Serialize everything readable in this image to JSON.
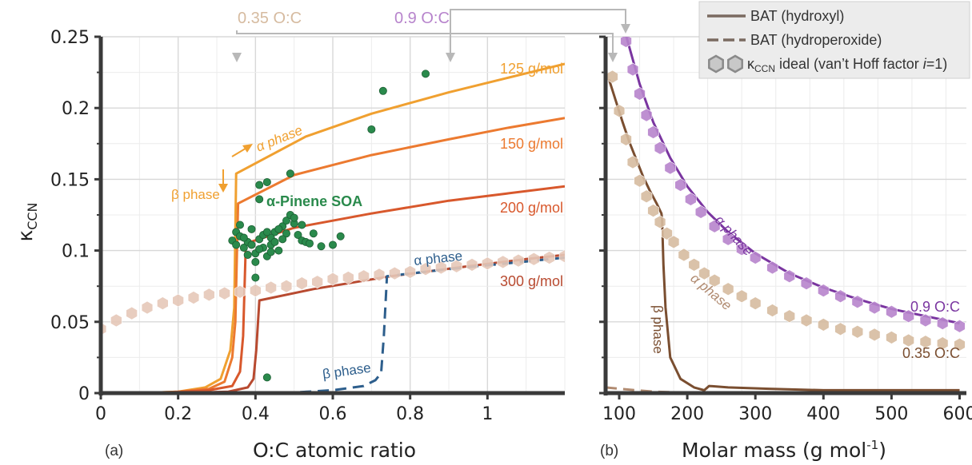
{
  "chart_data": [
    {
      "panel": "(a)",
      "type": "line",
      "xlabel": "O:C atomic ratio",
      "ylabel": "κ",
      "ylabel_sub": "CCN",
      "xlim": [
        0,
        1.2
      ],
      "ylim": [
        0,
        0.25
      ],
      "xticks": [
        0,
        0.2,
        0.4,
        0.6,
        0.8,
        1
      ],
      "xtick_labels": [
        "0",
        "0.2",
        "0.4",
        "0.6",
        "0.8",
        "1"
      ],
      "yticks": [
        0,
        0.05,
        0.1,
        0.15,
        0.2,
        0.25
      ],
      "ytick_labels": [
        "0",
        "0.05",
        "0.1",
        "0.15",
        "0.2",
        "0.25"
      ],
      "grid": true,
      "series": [
        {
          "name": "125 g/mol",
          "color": "#f0a030",
          "style": "solid",
          "x": [
            0.1,
            0.2,
            0.27,
            0.31,
            0.335,
            0.345,
            0.35,
            0.53,
            0.7,
            0.9,
            1.05,
            1.2
          ],
          "y": [
            0.0,
            0.001,
            0.004,
            0.01,
            0.03,
            0.06,
            0.154,
            0.18,
            0.196,
            0.211,
            0.221,
            0.231
          ]
        },
        {
          "name": "150 g/mol",
          "color": "#ec7a30",
          "style": "solid",
          "x": [
            0.1,
            0.2,
            0.28,
            0.32,
            0.34,
            0.348,
            0.355,
            0.5,
            0.7,
            0.9,
            1.05,
            1.2
          ],
          "y": [
            0.0,
            0.001,
            0.003,
            0.008,
            0.025,
            0.05,
            0.133,
            0.153,
            0.167,
            0.178,
            0.186,
            0.193
          ]
        },
        {
          "name": "200 g/mol",
          "color": "#d8582c",
          "style": "solid",
          "x": [
            0.15,
            0.28,
            0.34,
            0.36,
            0.368,
            0.375,
            0.5,
            0.7,
            0.9,
            1.05,
            1.2
          ],
          "y": [
            0.0,
            0.002,
            0.005,
            0.015,
            0.04,
            0.105,
            0.116,
            0.126,
            0.135,
            0.14,
            0.145
          ]
        },
        {
          "name": "300 g/mol",
          "color": "#b84a30",
          "style": "solid",
          "x": [
            0.2,
            0.33,
            0.38,
            0.395,
            0.402,
            0.41,
            0.55,
            0.75,
            0.95,
            1.1,
            1.2
          ],
          "y": [
            0.0,
            0.001,
            0.004,
            0.01,
            0.03,
            0.065,
            0.073,
            0.082,
            0.089,
            0.094,
            0.097
          ]
        },
        {
          "name": "",
          "color": "#2d5e8c",
          "style": "dashed",
          "x": [
            0.47,
            0.6,
            0.68,
            0.71,
            0.725,
            0.732,
            0.74,
            0.9,
            1.05,
            1.2
          ],
          "y": [
            0.0,
            0.002,
            0.005,
            0.009,
            0.014,
            0.04,
            0.082,
            0.087,
            0.091,
            0.095
          ]
        },
        {
          "name": "",
          "color": "#e6c8b8",
          "style": "hex-markers",
          "x": [
            0.0,
            0.04,
            0.08,
            0.12,
            0.16,
            0.2,
            0.24,
            0.28,
            0.32,
            0.36,
            0.4,
            0.44,
            0.48,
            0.52,
            0.56,
            0.6,
            0.64,
            0.68,
            0.72,
            0.76,
            0.8,
            0.84,
            0.88,
            0.92,
            0.96,
            1.0,
            1.04,
            1.08,
            1.12,
            1.16,
            1.2
          ],
          "y": [
            0.045,
            0.051,
            0.056,
            0.06,
            0.063,
            0.065,
            0.067,
            0.069,
            0.07,
            0.071,
            0.072,
            0.074,
            0.075,
            0.077,
            0.078,
            0.08,
            0.081,
            0.082,
            0.083,
            0.084,
            0.085,
            0.087,
            0.088,
            0.089,
            0.09,
            0.091,
            0.092,
            0.093,
            0.094,
            0.095,
            0.096
          ]
        }
      ],
      "scatter": {
        "name": "α-Pinene SOA",
        "color": "#2a8a4c",
        "points": [
          [
            0.73,
            0.212
          ],
          [
            0.84,
            0.224
          ],
          [
            0.7,
            0.185
          ],
          [
            0.49,
            0.154
          ],
          [
            0.41,
            0.146
          ],
          [
            0.43,
            0.148
          ],
          [
            0.41,
            0.136
          ],
          [
            0.34,
            0.107
          ],
          [
            0.35,
            0.113
          ],
          [
            0.36,
            0.11
          ],
          [
            0.37,
            0.102
          ],
          [
            0.38,
            0.106
          ],
          [
            0.39,
            0.115
          ],
          [
            0.4,
            0.098
          ],
          [
            0.41,
            0.108
          ],
          [
            0.42,
            0.111
          ],
          [
            0.43,
            0.096
          ],
          [
            0.44,
            0.104
          ],
          [
            0.45,
            0.113
          ],
          [
            0.46,
            0.1
          ],
          [
            0.47,
            0.117
          ],
          [
            0.48,
            0.121
          ],
          [
            0.49,
            0.125
          ],
          [
            0.5,
            0.119
          ],
          [
            0.51,
            0.111
          ],
          [
            0.52,
            0.107
          ],
          [
            0.53,
            0.106
          ],
          [
            0.55,
            0.112
          ],
          [
            0.57,
            0.103
          ],
          [
            0.6,
            0.104
          ],
          [
            0.62,
            0.11
          ],
          [
            0.36,
            0.118
          ],
          [
            0.38,
            0.097
          ],
          [
            0.4,
            0.092
          ],
          [
            0.42,
            0.102
          ],
          [
            0.44,
            0.109
          ],
          [
            0.46,
            0.115
          ],
          [
            0.48,
            0.112
          ],
          [
            0.5,
            0.123
          ],
          [
            0.39,
            0.104
          ],
          [
            0.41,
            0.101
          ],
          [
            0.45,
            0.106
          ],
          [
            0.47,
            0.108
          ],
          [
            0.43,
            0.113
          ],
          [
            0.37,
            0.109
          ],
          [
            0.35,
            0.104
          ],
          [
            0.52,
            0.118
          ],
          [
            0.54,
            0.105
          ],
          [
            0.44,
            0.099
          ],
          [
            0.4,
            0.081
          ],
          [
            0.43,
            0.011
          ]
        ]
      },
      "annotations": [
        {
          "text": "125 g/mol",
          "color": "#f0a030"
        },
        {
          "text": "150 g/mol",
          "color": "#ec7a30"
        },
        {
          "text": "200 g/mol",
          "color": "#d8582c"
        },
        {
          "text": "300 g/mol",
          "color": "#b84a30"
        },
        {
          "text": "α phase",
          "color": "#f0a030"
        },
        {
          "text": "β phase",
          "color": "#f0a030"
        },
        {
          "text": "α phase",
          "color": "#2d5e8c"
        },
        {
          "text": "β phase",
          "color": "#2d5e8c"
        }
      ],
      "top_labels": [
        {
          "text": "0.35 O:C",
          "color": "#d6bba0",
          "x": 0.35
        },
        {
          "text": "0.9 O:C",
          "color": "#b784cc",
          "x": 0.9
        }
      ]
    },
    {
      "panel": "(b)",
      "type": "line",
      "xlabel": "Molar mass (g mol",
      "xlabel_sup": "-1",
      "xlabel_end": ")",
      "xlim": [
        80,
        610
      ],
      "ylim": [
        0,
        0.25
      ],
      "xticks": [
        100,
        200,
        300,
        400,
        500,
        600
      ],
      "xtick_labels": [
        "100",
        "200",
        "300",
        "400",
        "500",
        "600"
      ],
      "yticks": [
        0,
        0.05,
        0.1,
        0.15,
        0.2,
        0.25
      ],
      "grid": true,
      "series": [
        {
          "name": "0.9 O:C",
          "color": "#7a35a0",
          "style": "solid",
          "x": [
            110,
            130,
            150,
            175,
            200,
            230,
            260,
            300,
            350,
            400,
            450,
            500,
            550,
            600
          ],
          "y": [
            0.251,
            0.217,
            0.19,
            0.165,
            0.145,
            0.127,
            0.113,
            0.098,
            0.084,
            0.074,
            0.066,
            0.059,
            0.054,
            0.049
          ]
        },
        {
          "name": "",
          "color": "#b784cc",
          "style": "hex-markers",
          "x": [
            110,
            120,
            130,
            140,
            150,
            160,
            175,
            190,
            205,
            220,
            240,
            260,
            280,
            300,
            325,
            350,
            375,
            400,
            425,
            450,
            475,
            500,
            525,
            550,
            575,
            600
          ],
          "y": [
            0.247,
            0.227,
            0.21,
            0.195,
            0.183,
            0.172,
            0.158,
            0.146,
            0.136,
            0.127,
            0.117,
            0.108,
            0.101,
            0.095,
            0.088,
            0.082,
            0.077,
            0.072,
            0.068,
            0.064,
            0.06,
            0.057,
            0.054,
            0.051,
            0.049,
            0.047
          ]
        },
        {
          "name": "0.35 O:C",
          "color": "#7a4e30",
          "style": "solid",
          "x": [
            85,
            95,
            105,
            115,
            125,
            135,
            145,
            155,
            160,
            162,
            163,
            165,
            168,
            175,
            190,
            210,
            225,
            232,
            260,
            320,
            400,
            500,
            600
          ],
          "y": [
            0.22,
            0.205,
            0.19,
            0.176,
            0.164,
            0.152,
            0.142,
            0.133,
            0.128,
            0.126,
            0.122,
            0.09,
            0.06,
            0.025,
            0.01,
            0.004,
            0.002,
            0.005,
            0.004,
            0.003,
            0.002,
            0.002,
            0.002
          ]
        },
        {
          "name": "",
          "color": "#b08a70",
          "style": "dashed",
          "x": [
            80,
            100,
            150,
            230
          ],
          "y": [
            0.004,
            0.003,
            0.001,
            0.0
          ]
        },
        {
          "name": "",
          "color": "#d6bba0",
          "style": "hex-markers",
          "x": [
            90,
            100,
            110,
            120,
            130,
            140,
            150,
            160,
            170,
            180,
            195,
            210,
            225,
            240,
            260,
            280,
            300,
            325,
            350,
            375,
            400,
            425,
            450,
            475,
            500,
            525,
            550,
            575,
            600
          ],
          "y": [
            0.222,
            0.198,
            0.178,
            0.162,
            0.149,
            0.138,
            0.128,
            0.12,
            0.112,
            0.106,
            0.097,
            0.09,
            0.084,
            0.079,
            0.073,
            0.068,
            0.063,
            0.058,
            0.054,
            0.051,
            0.048,
            0.045,
            0.043,
            0.041,
            0.039,
            0.037,
            0.036,
            0.035,
            0.034
          ]
        }
      ],
      "annotations": [
        {
          "text": "α phase",
          "color": "#7a35a0"
        },
        {
          "text": "α phase",
          "color": "#b08a70"
        },
        {
          "text": "β phase",
          "color": "#7a4e30"
        },
        {
          "text": "0.9 O:C",
          "color": "#7a35a0"
        },
        {
          "text": "0.35 O:C",
          "color": "#7a4e30"
        }
      ],
      "legend": {
        "placement": "top-right",
        "entries": [
          {
            "label": "BAT (hydroxyl)",
            "style": "solid"
          },
          {
            "label": "BAT (hydroperoxide)",
            "style": "dashed"
          },
          {
            "label_kappa": "κ",
            "label_sub": "CCN",
            "label_rest": " ideal (van’t Hoff factor ",
            "label_i": "i",
            "label_end": "=1)",
            "style": "hex-markers"
          }
        ]
      }
    }
  ]
}
